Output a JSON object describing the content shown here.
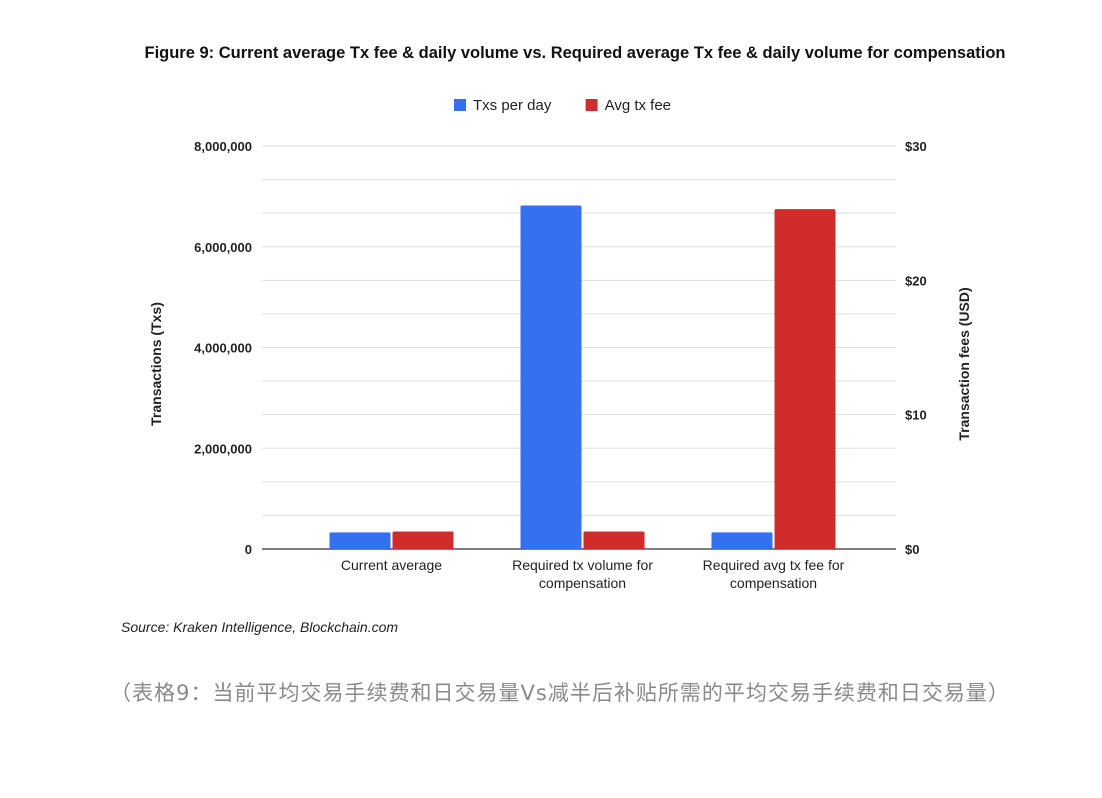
{
  "chart_data": {
    "type": "bar",
    "title": "Figure 9: Current average Tx fee & daily volume vs. Required average Tx fee & daily volume for compensation",
    "categories": [
      [
        "Current average"
      ],
      [
        "Required tx volume for",
        "compensation"
      ],
      [
        "Required avg tx fee for",
        "compensation"
      ]
    ],
    "series": [
      {
        "name": "Txs per day",
        "axis": "left",
        "color": "#3570f0",
        "values": [
          330000,
          6820000,
          330000
        ]
      },
      {
        "name": "Avg tx fee",
        "axis": "right",
        "color": "#d12b2b",
        "values": [
          1.3,
          1.3,
          25.3
        ]
      }
    ],
    "y_left": {
      "label": "Transactions (Txs)",
      "lim": [
        0,
        8000000
      ],
      "ticks": [
        0,
        2000000,
        4000000,
        6000000,
        8000000
      ],
      "tick_labels": [
        "0",
        "2,000,000",
        "4,000,000",
        "6,000,000",
        "8,000,000"
      ]
    },
    "y_right": {
      "label": "Transaction fees (USD)",
      "lim": [
        0,
        30
      ],
      "ticks": [
        0,
        10,
        20,
        30
      ],
      "tick_labels": [
        "$0",
        "$10",
        "$20",
        "$30"
      ]
    },
    "grid": true,
    "legend_position": "top-center",
    "source": "Source: Kraken Intelligence, Blockchain.com"
  },
  "caption": "（表格9：当前平均交易手续费和日交易量Vs减半后补贴所需的平均交易手续费和日交易量）"
}
